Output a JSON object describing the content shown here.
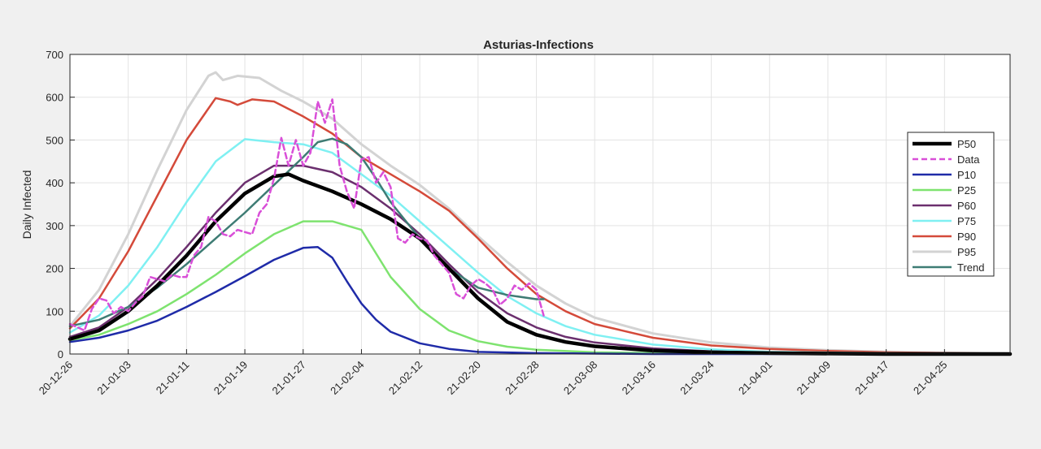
{
  "chart_data": {
    "type": "line",
    "title": "Asturias-Infections",
    "xlabel": "",
    "ylabel": "Daily Infected",
    "xlim": [
      "2020-12-26",
      "2021-05-04"
    ],
    "ylim": [
      0,
      700
    ],
    "yticks": [
      0,
      100,
      200,
      300,
      400,
      500,
      600,
      700
    ],
    "xticks": [
      "20-12-26",
      "21-01-03",
      "21-01-11",
      "21-01-19",
      "21-01-27",
      "21-02-04",
      "21-02-12",
      "21-02-20",
      "21-02-28",
      "21-03-08",
      "21-03-16",
      "21-03-24",
      "21-04-01",
      "21-04-09",
      "21-04-17",
      "21-04-25"
    ],
    "grid": true,
    "legend_position": "right",
    "series": [
      {
        "name": "P50",
        "color": "#000000",
        "style": "solid",
        "weight": "thick",
        "points": [
          [
            "2020-12-26",
            35
          ],
          [
            "2020-12-30",
            55
          ],
          [
            "2021-01-03",
            100
          ],
          [
            "2021-01-07",
            160
          ],
          [
            "2021-01-11",
            230
          ],
          [
            "2021-01-15",
            310
          ],
          [
            "2021-01-19",
            375
          ],
          [
            "2021-01-23",
            415
          ],
          [
            "2021-01-25",
            420
          ],
          [
            "2021-01-27",
            405
          ],
          [
            "2021-01-31",
            380
          ],
          [
            "2021-02-04",
            350
          ],
          [
            "2021-02-08",
            315
          ],
          [
            "2021-02-12",
            270
          ],
          [
            "2021-02-16",
            200
          ],
          [
            "2021-02-20",
            130
          ],
          [
            "2021-02-24",
            75
          ],
          [
            "2021-02-28",
            45
          ],
          [
            "2021-03-04",
            28
          ],
          [
            "2021-03-08",
            18
          ],
          [
            "2021-03-16",
            8
          ],
          [
            "2021-03-24",
            4
          ],
          [
            "2021-04-01",
            2
          ],
          [
            "2021-04-17",
            0
          ],
          [
            "2021-05-04",
            0
          ]
        ]
      },
      {
        "name": "Data",
        "color": "#d94fd8",
        "style": "dashed",
        "weight": "normal",
        "points": [
          [
            "2020-12-26",
            70
          ],
          [
            "2020-12-28",
            55
          ],
          [
            "2020-12-29",
            105
          ],
          [
            "2020-12-30",
            130
          ],
          [
            "2020-12-31",
            125
          ],
          [
            "2021-01-01",
            95
          ],
          [
            "2021-01-02",
            110
          ],
          [
            "2021-01-03",
            100
          ],
          [
            "2021-01-04",
            120
          ],
          [
            "2021-01-05",
            135
          ],
          [
            "2021-01-06",
            180
          ],
          [
            "2021-01-07",
            175
          ],
          [
            "2021-01-08",
            170
          ],
          [
            "2021-01-09",
            185
          ],
          [
            "2021-01-10",
            180
          ],
          [
            "2021-01-11",
            180
          ],
          [
            "2021-01-12",
            230
          ],
          [
            "2021-01-13",
            250
          ],
          [
            "2021-01-14",
            320
          ],
          [
            "2021-01-15",
            310
          ],
          [
            "2021-01-16",
            280
          ],
          [
            "2021-01-17",
            275
          ],
          [
            "2021-01-18",
            290
          ],
          [
            "2021-01-19",
            285
          ],
          [
            "2021-01-20",
            280
          ],
          [
            "2021-01-21",
            330
          ],
          [
            "2021-01-22",
            350
          ],
          [
            "2021-01-23",
            410
          ],
          [
            "2021-01-24",
            505
          ],
          [
            "2021-01-25",
            440
          ],
          [
            "2021-01-26",
            500
          ],
          [
            "2021-01-27",
            440
          ],
          [
            "2021-01-28",
            470
          ],
          [
            "2021-01-29",
            590
          ],
          [
            "2021-01-30",
            540
          ],
          [
            "2021-01-31",
            595
          ],
          [
            "2021-02-01",
            440
          ],
          [
            "2021-02-02",
            380
          ],
          [
            "2021-02-03",
            340
          ],
          [
            "2021-02-04",
            455
          ],
          [
            "2021-02-05",
            460
          ],
          [
            "2021-02-06",
            400
          ],
          [
            "2021-02-07",
            425
          ],
          [
            "2021-02-08",
            390
          ],
          [
            "2021-02-09",
            270
          ],
          [
            "2021-02-10",
            260
          ],
          [
            "2021-02-11",
            280
          ],
          [
            "2021-02-12",
            270
          ],
          [
            "2021-02-13",
            265
          ],
          [
            "2021-02-14",
            230
          ],
          [
            "2021-02-15",
            210
          ],
          [
            "2021-02-16",
            190
          ],
          [
            "2021-02-17",
            140
          ],
          [
            "2021-02-18",
            130
          ],
          [
            "2021-02-19",
            160
          ],
          [
            "2021-02-20",
            175
          ],
          [
            "2021-02-21",
            165
          ],
          [
            "2021-02-22",
            150
          ],
          [
            "2021-02-23",
            115
          ],
          [
            "2021-02-24",
            130
          ],
          [
            "2021-02-25",
            160
          ],
          [
            "2021-02-26",
            150
          ],
          [
            "2021-02-27",
            165
          ],
          [
            "2021-02-28",
            150
          ],
          [
            "2021-03-01",
            90
          ]
        ]
      },
      {
        "name": "P10",
        "color": "#1f2ba8",
        "style": "solid",
        "weight": "normal",
        "points": [
          [
            "2020-12-26",
            28
          ],
          [
            "2020-12-30",
            38
          ],
          [
            "2021-01-03",
            55
          ],
          [
            "2021-01-07",
            78
          ],
          [
            "2021-01-11",
            110
          ],
          [
            "2021-01-15",
            145
          ],
          [
            "2021-01-19",
            182
          ],
          [
            "2021-01-23",
            220
          ],
          [
            "2021-01-27",
            248
          ],
          [
            "2021-01-29",
            250
          ],
          [
            "2021-01-31",
            225
          ],
          [
            "2021-02-02",
            170
          ],
          [
            "2021-02-04",
            118
          ],
          [
            "2021-02-06",
            80
          ],
          [
            "2021-02-08",
            52
          ],
          [
            "2021-02-12",
            25
          ],
          [
            "2021-02-16",
            12
          ],
          [
            "2021-02-20",
            5
          ],
          [
            "2021-02-28",
            2
          ],
          [
            "2021-03-16",
            0
          ],
          [
            "2021-05-04",
            0
          ]
        ]
      },
      {
        "name": "P25",
        "color": "#7ee36f",
        "style": "solid",
        "weight": "normal",
        "points": [
          [
            "2020-12-26",
            32
          ],
          [
            "2020-12-30",
            45
          ],
          [
            "2021-01-03",
            70
          ],
          [
            "2021-01-07",
            100
          ],
          [
            "2021-01-11",
            140
          ],
          [
            "2021-01-15",
            185
          ],
          [
            "2021-01-19",
            235
          ],
          [
            "2021-01-23",
            280
          ],
          [
            "2021-01-27",
            310
          ],
          [
            "2021-01-31",
            310
          ],
          [
            "2021-02-04",
            290
          ],
          [
            "2021-02-06",
            235
          ],
          [
            "2021-02-08",
            180
          ],
          [
            "2021-02-12",
            105
          ],
          [
            "2021-02-16",
            55
          ],
          [
            "2021-02-20",
            30
          ],
          [
            "2021-02-24",
            17
          ],
          [
            "2021-02-28",
            10
          ],
          [
            "2021-03-08",
            4
          ],
          [
            "2021-03-24",
            1
          ],
          [
            "2021-05-04",
            0
          ]
        ]
      },
      {
        "name": "P60",
        "color": "#6b2f6e",
        "style": "solid",
        "weight": "normal",
        "points": [
          [
            "2020-12-26",
            40
          ],
          [
            "2020-12-30",
            62
          ],
          [
            "2021-01-03",
            110
          ],
          [
            "2021-01-07",
            175
          ],
          [
            "2021-01-11",
            250
          ],
          [
            "2021-01-15",
            330
          ],
          [
            "2021-01-19",
            400
          ],
          [
            "2021-01-23",
            440
          ],
          [
            "2021-01-27",
            440
          ],
          [
            "2021-01-31",
            425
          ],
          [
            "2021-02-04",
            390
          ],
          [
            "2021-02-08",
            340
          ],
          [
            "2021-02-12",
            280
          ],
          [
            "2021-02-16",
            210
          ],
          [
            "2021-02-20",
            145
          ],
          [
            "2021-02-24",
            95
          ],
          [
            "2021-02-28",
            62
          ],
          [
            "2021-03-04",
            40
          ],
          [
            "2021-03-08",
            27
          ],
          [
            "2021-03-16",
            13
          ],
          [
            "2021-03-24",
            6
          ],
          [
            "2021-04-01",
            3
          ],
          [
            "2021-04-17",
            1
          ],
          [
            "2021-05-04",
            0
          ]
        ]
      },
      {
        "name": "P75",
        "color": "#7ff0f2",
        "style": "solid",
        "weight": "normal",
        "points": [
          [
            "2020-12-26",
            50
          ],
          [
            "2020-12-30",
            90
          ],
          [
            "2021-01-03",
            160
          ],
          [
            "2021-01-07",
            250
          ],
          [
            "2021-01-11",
            355
          ],
          [
            "2021-01-15",
            450
          ],
          [
            "2021-01-19",
            502
          ],
          [
            "2021-01-23",
            495
          ],
          [
            "2021-01-27",
            490
          ],
          [
            "2021-01-31",
            470
          ],
          [
            "2021-02-04",
            420
          ],
          [
            "2021-02-08",
            370
          ],
          [
            "2021-02-12",
            310
          ],
          [
            "2021-02-16",
            250
          ],
          [
            "2021-02-20",
            190
          ],
          [
            "2021-02-24",
            135
          ],
          [
            "2021-02-28",
            95
          ],
          [
            "2021-03-04",
            65
          ],
          [
            "2021-03-08",
            45
          ],
          [
            "2021-03-16",
            22
          ],
          [
            "2021-03-24",
            11
          ],
          [
            "2021-04-01",
            5
          ],
          [
            "2021-04-17",
            2
          ],
          [
            "2021-05-04",
            0
          ]
        ]
      },
      {
        "name": "P90",
        "color": "#d44a3a",
        "style": "solid",
        "weight": "normal",
        "points": [
          [
            "2020-12-26",
            60
          ],
          [
            "2020-12-30",
            130
          ],
          [
            "2021-01-03",
            240
          ],
          [
            "2021-01-07",
            370
          ],
          [
            "2021-01-11",
            500
          ],
          [
            "2021-01-15",
            598
          ],
          [
            "2021-01-17",
            590
          ],
          [
            "2021-01-18",
            582
          ],
          [
            "2021-01-20",
            595
          ],
          [
            "2021-01-23",
            590
          ],
          [
            "2021-01-27",
            555
          ],
          [
            "2021-01-31",
            515
          ],
          [
            "2021-02-04",
            460
          ],
          [
            "2021-02-08",
            420
          ],
          [
            "2021-02-12",
            380
          ],
          [
            "2021-02-16",
            335
          ],
          [
            "2021-02-20",
            270
          ],
          [
            "2021-02-24",
            200
          ],
          [
            "2021-02-28",
            140
          ],
          [
            "2021-03-04",
            100
          ],
          [
            "2021-03-08",
            70
          ],
          [
            "2021-03-16",
            38
          ],
          [
            "2021-03-24",
            20
          ],
          [
            "2021-04-01",
            12
          ],
          [
            "2021-04-09",
            7
          ],
          [
            "2021-04-17",
            4
          ],
          [
            "2021-04-25",
            2
          ],
          [
            "2021-05-04",
            1
          ]
        ]
      },
      {
        "name": "P95",
        "color": "#d3d3d3",
        "style": "solid",
        "weight": "thick",
        "points": [
          [
            "2020-12-26",
            65
          ],
          [
            "2020-12-30",
            150
          ],
          [
            "2021-01-03",
            280
          ],
          [
            "2021-01-07",
            430
          ],
          [
            "2021-01-11",
            570
          ],
          [
            "2021-01-14",
            650
          ],
          [
            "2021-01-15",
            658
          ],
          [
            "2021-01-16",
            640
          ],
          [
            "2021-01-18",
            650
          ],
          [
            "2021-01-21",
            645
          ],
          [
            "2021-01-24",
            615
          ],
          [
            "2021-01-27",
            590
          ],
          [
            "2021-01-31",
            550
          ],
          [
            "2021-02-04",
            490
          ],
          [
            "2021-02-08",
            440
          ],
          [
            "2021-02-12",
            395
          ],
          [
            "2021-02-16",
            340
          ],
          [
            "2021-02-20",
            275
          ],
          [
            "2021-02-24",
            215
          ],
          [
            "2021-02-28",
            160
          ],
          [
            "2021-03-04",
            118
          ],
          [
            "2021-03-08",
            85
          ],
          [
            "2021-03-16",
            48
          ],
          [
            "2021-03-24",
            27
          ],
          [
            "2021-04-01",
            15
          ],
          [
            "2021-04-09",
            9
          ],
          [
            "2021-04-17",
            5
          ],
          [
            "2021-04-25",
            3
          ],
          [
            "2021-05-04",
            1
          ]
        ]
      },
      {
        "name": "Trend",
        "color": "#3e7c74",
        "style": "solid",
        "weight": "normal",
        "points": [
          [
            "2020-12-26",
            65
          ],
          [
            "2020-12-30",
            80
          ],
          [
            "2021-01-03",
            110
          ],
          [
            "2021-01-07",
            155
          ],
          [
            "2021-01-11",
            210
          ],
          [
            "2021-01-15",
            270
          ],
          [
            "2021-01-19",
            330
          ],
          [
            "2021-01-23",
            395
          ],
          [
            "2021-01-27",
            460
          ],
          [
            "2021-01-29",
            495
          ],
          [
            "2021-01-31",
            503
          ],
          [
            "2021-02-02",
            490
          ],
          [
            "2021-02-04",
            460
          ],
          [
            "2021-02-06",
            410
          ],
          [
            "2021-02-08",
            355
          ],
          [
            "2021-02-12",
            270
          ],
          [
            "2021-02-16",
            200
          ],
          [
            "2021-02-20",
            155
          ],
          [
            "2021-02-24",
            138
          ],
          [
            "2021-02-28",
            128
          ],
          [
            "2021-03-01",
            128
          ]
        ]
      }
    ]
  }
}
